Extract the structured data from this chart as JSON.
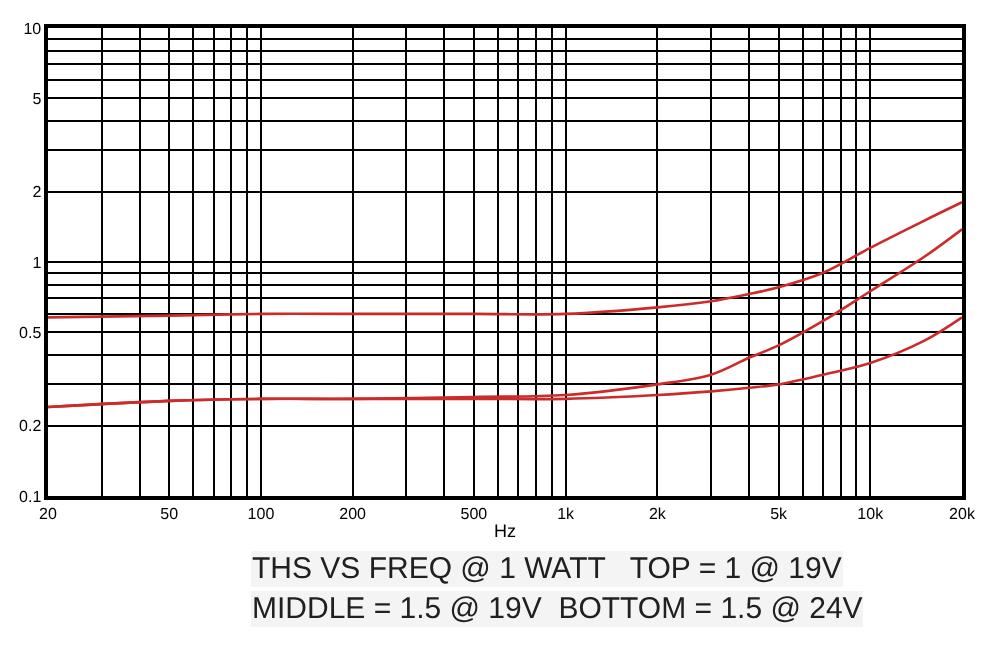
{
  "chart_data": {
    "type": "line",
    "xlabel": "Hz",
    "annotations": [
      "THS VS FREQ @ 1 WATT   TOP = 1 @ 19V",
      "MIDDLE = 1.5 @ 19V  BOTTOM = 1.5 @ 24V"
    ],
    "log": "xy",
    "grid": true,
    "marker": "none",
    "line_style": "solid",
    "xlim": [
      20,
      20000
    ],
    "ylim": [
      0.1,
      10
    ],
    "xticks": [
      20,
      {
        "value": 30,
        "label": null
      },
      {
        "value": 40,
        "label": null
      },
      50,
      {
        "value": 60,
        "label": null
      },
      {
        "value": 70,
        "label": null
      },
      {
        "value": 80,
        "label": null
      },
      {
        "value": 90,
        "label": null
      },
      100,
      200,
      {
        "value": 300,
        "label": null
      },
      {
        "value": 400,
        "label": null
      },
      500,
      {
        "value": 600,
        "label": null
      },
      {
        "value": 700,
        "label": null
      },
      {
        "value": 800,
        "label": null
      },
      {
        "value": 900,
        "label": null
      },
      {
        "value": 1000,
        "label": "1k"
      },
      {
        "value": 2000,
        "label": "2k"
      },
      {
        "value": 3000,
        "label": null
      },
      {
        "value": 4000,
        "label": null
      },
      {
        "value": 5000,
        "label": "5k"
      },
      {
        "value": 6000,
        "label": null
      },
      {
        "value": 7000,
        "label": null
      },
      {
        "value": 8000,
        "label": null
      },
      {
        "value": 9000,
        "label": null
      },
      {
        "value": 10000,
        "label": "10k"
      },
      {
        "value": 20000,
        "label": "20k"
      }
    ],
    "yticks": [
      0.1,
      0.2,
      {
        "value": 0.3,
        "label": null
      },
      {
        "value": 0.4,
        "label": null
      },
      0.5,
      {
        "value": 0.6,
        "label": null
      },
      {
        "value": 0.7,
        "label": null
      },
      {
        "value": 0.8,
        "label": null
      },
      {
        "value": 0.9,
        "label": null
      },
      1,
      2,
      {
        "value": 3,
        "label": null
      },
      {
        "value": 4,
        "label": null
      },
      5,
      {
        "value": 6,
        "label": null
      },
      {
        "value": 7,
        "label": null
      },
      {
        "value": 8,
        "label": null
      },
      {
        "value": 9,
        "label": null
      },
      10
    ],
    "x": [
      20,
      50,
      100,
      200,
      500,
      1000,
      2000,
      3000,
      4000,
      5000,
      7000,
      10000,
      15000,
      20000
    ],
    "series": [
      {
        "color": "#cc2b2b",
        "values": [
          0.58,
          0.59,
          0.6,
          0.6,
          0.6,
          0.6,
          0.64,
          0.68,
          0.73,
          0.78,
          0.9,
          1.15,
          1.5,
          1.8
        ]
      },
      {
        "color": "#cc2b2b",
        "values": [
          0.24,
          0.255,
          0.26,
          0.26,
          0.265,
          0.27,
          0.3,
          0.33,
          0.39,
          0.44,
          0.56,
          0.75,
          1.05,
          1.38
        ]
      },
      {
        "color": "#cc2b2b",
        "values": [
          0.24,
          0.255,
          0.26,
          0.26,
          0.26,
          0.26,
          0.27,
          0.28,
          0.29,
          0.3,
          0.33,
          0.37,
          0.46,
          0.58
        ]
      }
    ]
  }
}
